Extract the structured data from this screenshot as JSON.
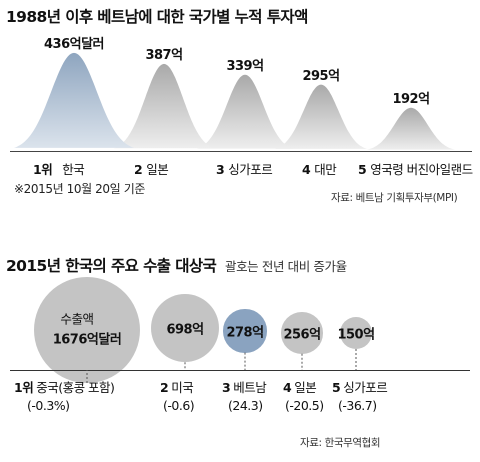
{
  "chart_data": [
    {
      "type": "area",
      "title": "1988년 이후 베트남에 대한 국가별 누적 투자액",
      "categories": [
        {
          "rank": "1위",
          "name": "한국"
        },
        {
          "rank": "2",
          "name": "일본"
        },
        {
          "rank": "3",
          "name": "싱가포르"
        },
        {
          "rank": "4",
          "name": "대만"
        },
        {
          "rank": "5",
          "name": "영국령 버진아일랜드"
        }
      ],
      "values": [
        436,
        387,
        339,
        295,
        192
      ],
      "value_labels": [
        "436억달러",
        "387억",
        "339억",
        "295억",
        "192억"
      ],
      "unit": "억달러",
      "note": "※2015년 10월 20일 기준",
      "source": "자료: 베트남 기획투자부(MPI)",
      "colors": {
        "highlight": "#8ea5bf",
        "highlight_light": "#dbe3ec",
        "default": "#a9a9a9",
        "default_light": "#eeeeee"
      }
    },
    {
      "type": "scatter",
      "title": "2015년 한국의 주요 수출 대상국",
      "subtitle": "괄호는 전년 대비 증가율",
      "categories": [
        {
          "rank": "1위",
          "name": "중국(홍콩 포함)"
        },
        {
          "rank": "2",
          "name": "미국"
        },
        {
          "rank": "3",
          "name": "베트남"
        },
        {
          "rank": "4",
          "name": "일본"
        },
        {
          "rank": "5",
          "name": "싱가포르"
        }
      ],
      "values": [
        1676,
        698,
        278,
        256,
        150
      ],
      "value_labels": [
        "1676억달러",
        "698억",
        "278억",
        "256억",
        "150억"
      ],
      "first_bubble_caption": "수출액",
      "growth_labels": [
        "(-0.3%)",
        "(-0.6)",
        "(24.3)",
        "(-20.5)",
        "(-36.7)"
      ],
      "growth_rates": [
        -0.3,
        -0.6,
        24.3,
        -20.5,
        -36.7
      ],
      "highlight_index": 2,
      "source": "자료: 한국무역협회",
      "colors": {
        "highlight": "#8aa3c0",
        "default": "#c4c4c4"
      }
    }
  ]
}
